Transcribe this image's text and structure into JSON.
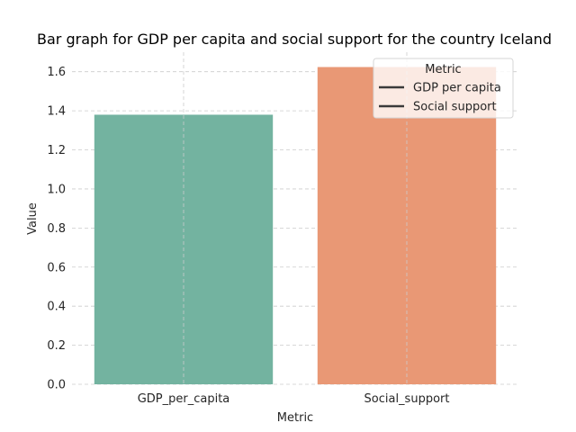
{
  "chart_data": {
    "type": "bar",
    "title": "Bar graph for GDP per capita and social support for the country Iceland",
    "xlabel": "Metric",
    "ylabel": "Value",
    "categories": [
      "GDP_per_capita",
      "Social_support"
    ],
    "values": [
      1.38,
      1.624
    ],
    "colors": [
      "#73b3a0",
      "#e99875"
    ],
    "ylim": [
      0,
      1.7
    ],
    "yticks": [
      "0.0",
      "0.2",
      "0.4",
      "0.6",
      "0.8",
      "1.0",
      "1.2",
      "1.4",
      "1.6"
    ],
    "grid": true,
    "legend": {
      "title": "Metric",
      "placement": "top-right",
      "entries": [
        "GDP per capita",
        "Social support"
      ],
      "line_color": "#3a3a3a"
    }
  }
}
